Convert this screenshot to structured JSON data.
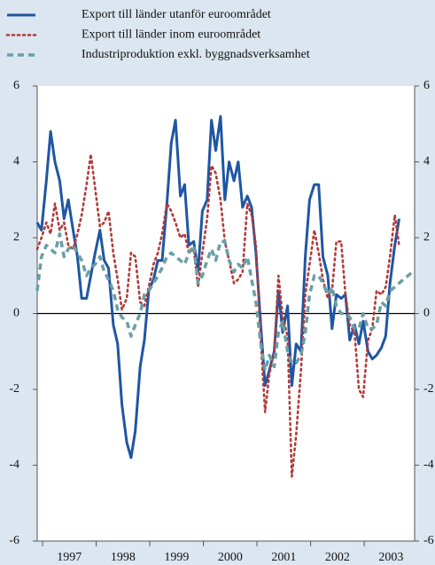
{
  "chart_data": {
    "type": "line",
    "x": [
      1996.9,
      1996.98,
      1997.07,
      1997.15,
      1997.23,
      1997.32,
      1997.4,
      1997.48,
      1997.57,
      1997.65,
      1997.73,
      1997.82,
      1997.9,
      1997.98,
      1998.07,
      1998.15,
      1998.23,
      1998.32,
      1998.4,
      1998.48,
      1998.57,
      1998.65,
      1998.73,
      1998.82,
      1998.9,
      1998.98,
      1999.07,
      1999.15,
      1999.23,
      1999.32,
      1999.4,
      1999.48,
      1999.57,
      1999.65,
      1999.73,
      1999.82,
      1999.9,
      1999.98,
      2000.07,
      2000.15,
      2000.23,
      2000.32,
      2000.4,
      2000.48,
      2000.57,
      2000.65,
      2000.73,
      2000.82,
      2000.9,
      2000.98,
      2001.07,
      2001.15,
      2001.23,
      2001.32,
      2001.4,
      2001.48,
      2001.57,
      2001.65,
      2001.73,
      2001.82,
      2001.9,
      2001.98,
      2002.07,
      2002.15,
      2002.23,
      2002.32,
      2002.4,
      2002.48,
      2002.57,
      2002.65,
      2002.73,
      2002.82,
      2002.9,
      2002.98,
      2003.07,
      2003.15,
      2003.23,
      2003.32,
      2003.4,
      2003.48,
      2003.57,
      2003.65,
      2003.73,
      2003.82,
      2003.9
    ],
    "series": [
      {
        "name": "Export till länder utanför euroområdet",
        "color": "#1f56a3",
        "style": "solid",
        "values": [
          2.4,
          2.2,
          3.5,
          4.8,
          4.0,
          3.5,
          2.5,
          3.0,
          2.2,
          1.5,
          0.4,
          0.4,
          1.0,
          1.6,
          2.2,
          1.4,
          1.2,
          -0.3,
          -0.8,
          -2.4,
          -3.4,
          -3.8,
          -3.1,
          -1.4,
          -0.7,
          0.6,
          0.9,
          1.4,
          1.4,
          2.9,
          4.5,
          5.1,
          3.1,
          3.4,
          1.8,
          1.9,
          1.1,
          2.7,
          3.0,
          5.1,
          4.3,
          5.2,
          3.0,
          4.0,
          3.5,
          4.0,
          2.8,
          3.1,
          2.8,
          1.6,
          -0.3,
          -1.9,
          -1.5,
          -1.0,
          0.6,
          -0.5,
          0.2,
          -1.9,
          -0.8,
          -1.0,
          1.5,
          3.0,
          3.4,
          3.4,
          1.5,
          1.0,
          -0.4,
          0.5,
          0.4,
          0.5,
          -0.7,
          -0.3,
          -0.8,
          -0.2,
          -1.0,
          -1.2,
          -1.1,
          -0.9,
          -0.6,
          0.8,
          1.8,
          2.5,
          null,
          null,
          null
        ]
      },
      {
        "name": "Export till länder inom euroområdet",
        "color": "#b23a3a",
        "style": "dotted",
        "values": [
          1.7,
          2.0,
          2.4,
          2.1,
          2.9,
          2.2,
          2.4,
          1.8,
          1.7,
          2.1,
          2.6,
          3.4,
          4.2,
          3.3,
          2.3,
          2.4,
          2.7,
          1.6,
          0.9,
          0.1,
          0.4,
          1.6,
          1.5,
          0.3,
          0.2,
          0.7,
          1.3,
          1.6,
          2.1,
          2.9,
          2.7,
          2.4,
          2.0,
          2.1,
          1.6,
          1.7,
          0.7,
          1.6,
          2.5,
          3.9,
          3.7,
          3.0,
          1.9,
          1.4,
          0.8,
          0.9,
          1.1,
          2.9,
          2.6,
          1.8,
          -0.7,
          -2.6,
          -1.6,
          -1.0,
          1.0,
          -0.1,
          -0.6,
          -4.3,
          -3.2,
          -1.5,
          0.5,
          1.3,
          2.2,
          1.6,
          0.9,
          0.4,
          0.6,
          1.9,
          1.9,
          0.5,
          -0.3,
          -0.5,
          -2.0,
          -2.2,
          -0.7,
          -0.4,
          0.6,
          0.5,
          0.7,
          1.5,
          2.6,
          1.8,
          null,
          null,
          null
        ]
      },
      {
        "name": "Industriproduktion exkl. byggnadsverksamhet",
        "color": "#6a9fa6",
        "style": "dashed",
        "values": [
          0.6,
          1.5,
          1.8,
          1.7,
          1.6,
          2.1,
          1.5,
          1.7,
          1.8,
          1.6,
          1.4,
          1.0,
          1.2,
          1.3,
          1.5,
          1.1,
          0.9,
          0.6,
          0.1,
          -0.1,
          -0.2,
          -0.6,
          -0.3,
          0.0,
          0.5,
          0.6,
          0.8,
          1.0,
          1.2,
          1.5,
          1.6,
          1.5,
          1.4,
          1.3,
          1.6,
          1.8,
          0.8,
          1.0,
          1.4,
          1.7,
          1.4,
          1.9,
          1.9,
          1.4,
          1.1,
          1.3,
          1.2,
          1.5,
          0.9,
          0.3,
          -0.8,
          -1.5,
          -1.1,
          -1.4,
          -0.5,
          -0.2,
          -1.0,
          -1.3,
          -1.3,
          -1.1,
          -0.5,
          0.5,
          1.0,
          1.0,
          0.8,
          0.5,
          0.7,
          0.2,
          0.0,
          0.0,
          -0.1,
          -0.4,
          -0.4,
          0.0,
          -0.4,
          -0.4,
          -0.3,
          0.3,
          0.2,
          0.6,
          0.7,
          0.8,
          0.9,
          1.0,
          1.1
        ]
      }
    ],
    "xlim": [
      1996.9,
      2003.94
    ],
    "xticks": [
      {
        "value": 1997.5,
        "label": "1997"
      },
      {
        "value": 1998.5,
        "label": "1998"
      },
      {
        "value": 1999.5,
        "label": "1999"
      },
      {
        "value": 2000.5,
        "label": "2000"
      },
      {
        "value": 2001.5,
        "label": "2001"
      },
      {
        "value": 2002.5,
        "label": "2002"
      },
      {
        "value": 2003.5,
        "label": "2003"
      }
    ],
    "ylim": [
      -6,
      6
    ],
    "yticks": [
      -6,
      -4,
      -2,
      0,
      2,
      4,
      6
    ]
  }
}
